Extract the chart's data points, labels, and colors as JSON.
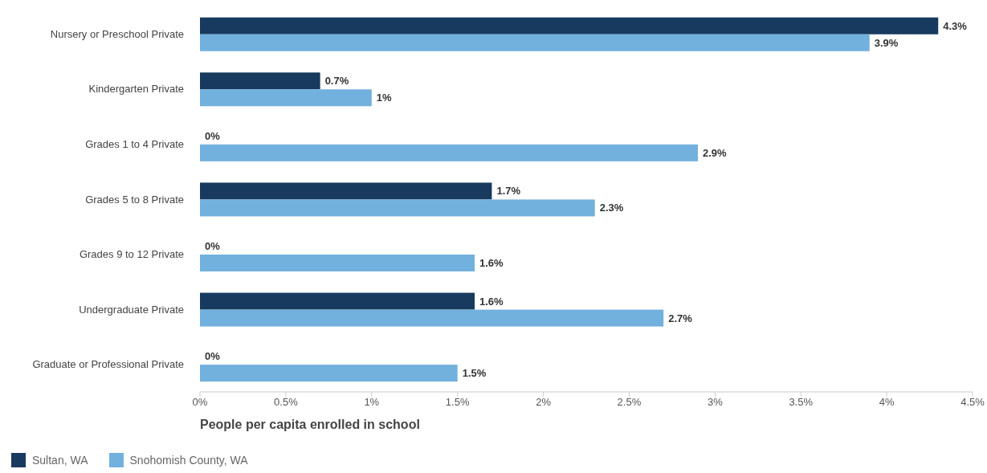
{
  "chart_data": {
    "type": "bar",
    "orientation": "horizontal",
    "xlabel": "People per capita enrolled in school",
    "categories": [
      "Nursery or Preschool Private",
      "Kindergarten Private",
      "Grades 1 to 4 Private",
      "Grades 5 to 8 Private",
      "Grades 9 to 12 Private",
      "Undergraduate Private",
      "Graduate or Professional Private"
    ],
    "series": [
      {
        "name": "Sultan, WA",
        "color": "#173a5e",
        "values": [
          4.3,
          0.7,
          0,
          1.7,
          0,
          1.6,
          0
        ],
        "value_labels": [
          "4.3%",
          "0.7%",
          "0%",
          "1.7%",
          "0%",
          "1.6%",
          "0%"
        ]
      },
      {
        "name": "Snohomish County, WA",
        "color": "#72b0dd",
        "values": [
          3.9,
          1,
          2.9,
          2.3,
          1.6,
          2.7,
          1.5
        ],
        "value_labels": [
          "3.9%",
          "1%",
          "2.9%",
          "2.3%",
          "1.6%",
          "2.7%",
          "1.5%"
        ]
      }
    ],
    "xlim": [
      0,
      4.5
    ],
    "xticks": [
      {
        "value": 0,
        "label": "0%"
      },
      {
        "value": 0.5,
        "label": "0.5%"
      },
      {
        "value": 1,
        "label": "1%"
      },
      {
        "value": 1.5,
        "label": "1.5%"
      },
      {
        "value": 2,
        "label": "2%"
      },
      {
        "value": 2.5,
        "label": "2.5%"
      },
      {
        "value": 3,
        "label": "3%"
      },
      {
        "value": 3.5,
        "label": "3.5%"
      },
      {
        "value": 4,
        "label": "4%"
      },
      {
        "value": 4.5,
        "label": "4.5%"
      }
    ],
    "grid": false,
    "legend": "bottom left"
  }
}
